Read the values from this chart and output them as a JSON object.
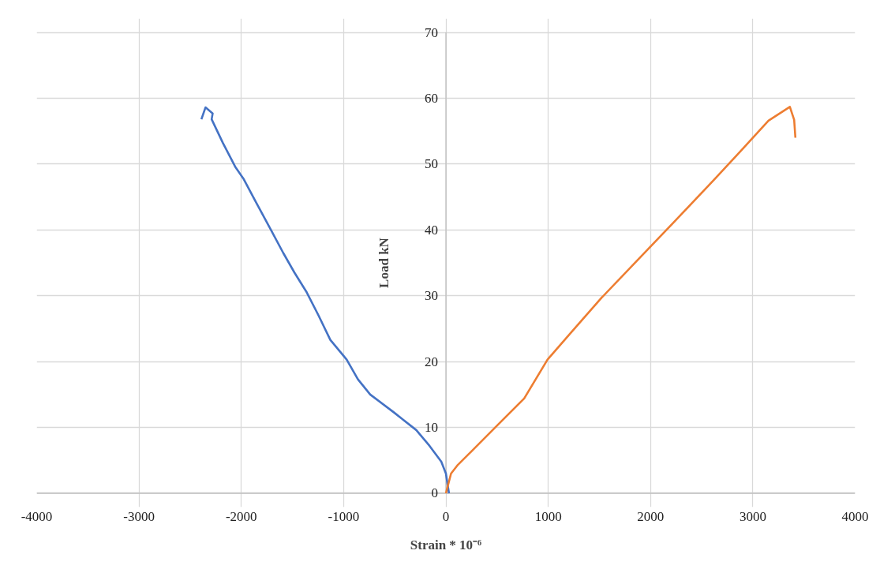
{
  "chart_data": {
    "type": "line",
    "xlabel": "Strain * 10⁻⁶",
    "ylabel": "Load kN",
    "xlim": [
      -4000,
      4000
    ],
    "xticks": [
      -4000,
      -3000,
      -2000,
      -1000,
      0,
      1000,
      2000,
      3000,
      4000
    ],
    "ylim": [
      0,
      70
    ],
    "yticks": [
      0,
      10,
      20,
      30,
      40,
      50,
      60,
      70
    ],
    "grid": true,
    "marker": "none",
    "line_style": "solid",
    "series": [
      {
        "color": "#4472c4",
        "x": [
          30,
          0,
          -45,
          -160,
          -290,
          -510,
          -740,
          -860,
          -970,
          -1130,
          -1245,
          -1360,
          -1480,
          -1590,
          -1710,
          -1860,
          -1980,
          -2060,
          -2180,
          -2290,
          -2280,
          -2350,
          -2390
        ],
        "values": [
          0,
          3,
          4.8,
          7.2,
          9.6,
          12.3,
          15,
          17.3,
          20.3,
          23.3,
          27,
          30.5,
          33.5,
          36.5,
          40,
          44.3,
          47.8,
          49.6,
          53.2,
          56.8,
          57.7,
          58.6,
          56.8
        ]
      },
      {
        "color": "#ed7d31",
        "x": [
          0,
          50,
          110,
          265,
          495,
          765,
          993,
          1206,
          1522,
          1952,
          2218,
          2620,
          2883,
          3153,
          3362,
          3404,
          3416
        ],
        "values": [
          0,
          3,
          4.2,
          6.6,
          10.2,
          14.4,
          20.3,
          24.1,
          29.7,
          36.7,
          41,
          47.6,
          52,
          56.6,
          58.7,
          56.7,
          54
        ]
      }
    ]
  }
}
